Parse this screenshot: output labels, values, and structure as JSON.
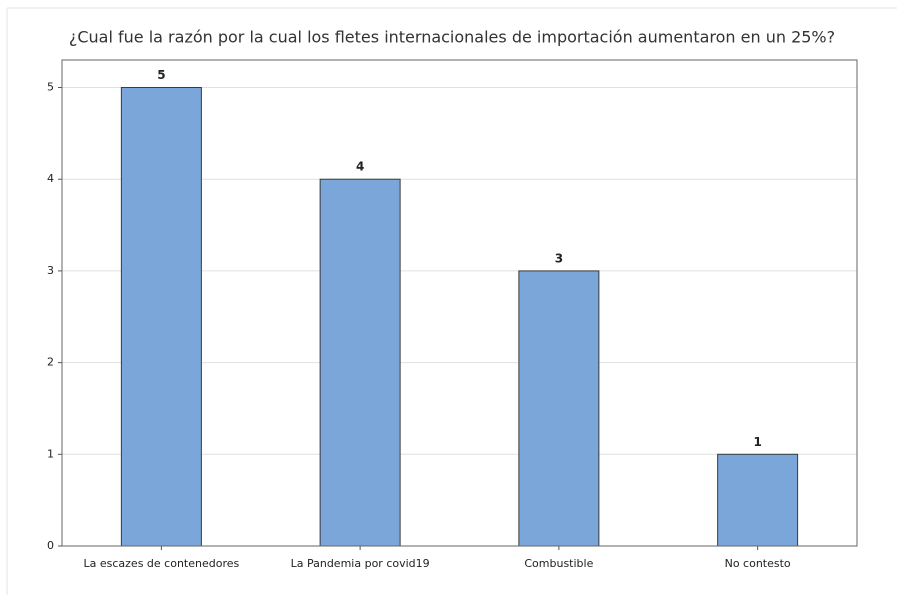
{
  "chart_data": {
    "type": "bar",
    "title": "¿Cual fue la razón por la cual los fletes internacionales de importación aumentaron en un 25%?",
    "categories": [
      "La escazes de contenedores",
      "La Pandemia por covid19",
      "Combustible",
      "No contesto"
    ],
    "values": [
      5,
      4,
      3,
      1
    ],
    "color": "#7ba6da",
    "ylim": [
      0,
      5.3
    ],
    "yticks": [
      0,
      1,
      2,
      3,
      4,
      5
    ],
    "grid": true
  }
}
